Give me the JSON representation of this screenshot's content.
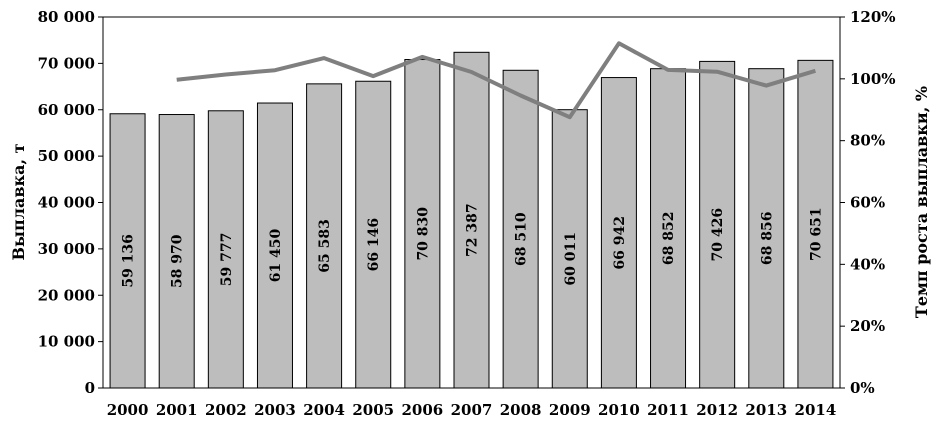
{
  "chart_data": {
    "type": "bar",
    "categories": [
      "2000",
      "2001",
      "2002",
      "2003",
      "2004",
      "2005",
      "2006",
      "2007",
      "2008",
      "2009",
      "2010",
      "2011",
      "2012",
      "2013",
      "2014"
    ],
    "series": [
      {
        "values": [
          59136,
          58970,
          59777,
          61450,
          65583,
          66146,
          70830,
          72387,
          68510,
          60011,
          66942,
          68852,
          70426,
          68856,
          70651
        ],
        "labels": [
          "59 136",
          "58 970",
          "59 777",
          "61 450",
          "65 583",
          "66 146",
          "70 830",
          "72 387",
          "68 510",
          "60 011",
          "66 942",
          "68 852",
          "70 426",
          "68 856",
          "70 651"
        ],
        "axis": "left",
        "color": "#bdbdbd"
      },
      {
        "type": "line",
        "axis": "right",
        "color": "#7f7f7f",
        "values": [
          null,
          99.7,
          101.4,
          102.8,
          106.7,
          100.9,
          107.1,
          102.2,
          94.6,
          87.6,
          111.5,
          102.9,
          102.3,
          97.8,
          102.6
        ]
      }
    ],
    "ylabel": "Выплавка, т",
    "y2label": "Темп роста выплавки, %",
    "ylim": [
      0,
      80000
    ],
    "y2lim": [
      0,
      120
    ],
    "yticks": [
      "0",
      "10 000",
      "20 000",
      "30 000",
      "40 000",
      "50 000",
      "60 000",
      "70 000",
      "80 000"
    ],
    "y2ticks": [
      "0%",
      "20%",
      "40%",
      "60%",
      "80%",
      "100%",
      "120%"
    ],
    "grid": false,
    "legend": "none"
  }
}
